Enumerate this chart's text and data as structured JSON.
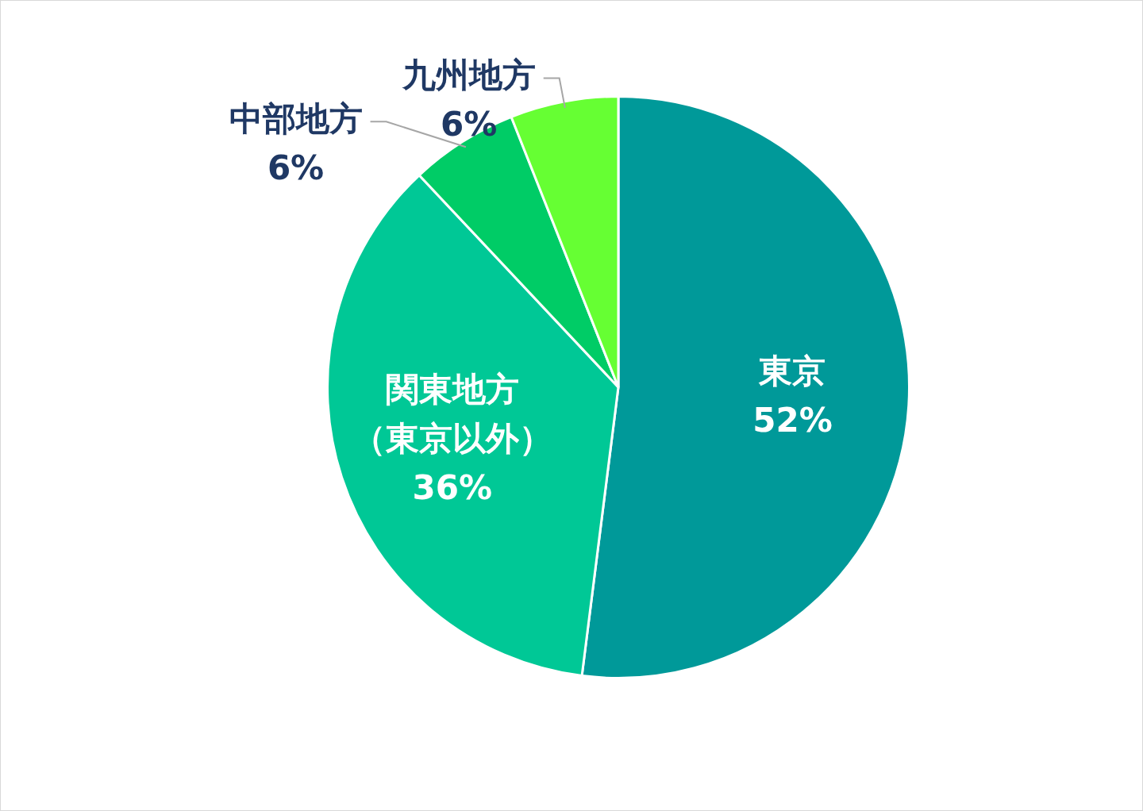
{
  "chart_data": {
    "type": "pie",
    "categories": [
      "東京",
      "関東地方（東京以外）",
      "中部地方",
      "九州地方"
    ],
    "values": [
      52,
      36,
      6,
      6
    ],
    "colors": [
      "#009999",
      "#00c896",
      "#00cc66",
      "#66ff33"
    ],
    "value_labels": [
      "52%",
      "36%",
      "6%",
      "6%"
    ],
    "legend": false
  }
}
